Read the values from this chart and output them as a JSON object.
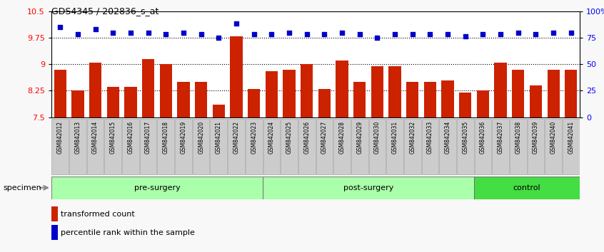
{
  "title": "GDS4345 / 202836_s_at",
  "samples": [
    "GSM842012",
    "GSM842013",
    "GSM842014",
    "GSM842015",
    "GSM842016",
    "GSM842017",
    "GSM842018",
    "GSM842019",
    "GSM842020",
    "GSM842021",
    "GSM842022",
    "GSM842023",
    "GSM842024",
    "GSM842025",
    "GSM842026",
    "GSM842027",
    "GSM842028",
    "GSM842029",
    "GSM842030",
    "GSM842031",
    "GSM842032",
    "GSM842033",
    "GSM842034",
    "GSM842035",
    "GSM842036",
    "GSM842037",
    "GSM842038",
    "GSM842039",
    "GSM842040",
    "GSM842041"
  ],
  "bar_values": [
    8.85,
    8.25,
    9.05,
    8.35,
    8.35,
    9.15,
    9.0,
    8.5,
    8.5,
    7.85,
    9.8,
    8.3,
    8.8,
    8.85,
    9.0,
    8.3,
    9.1,
    8.5,
    8.95,
    8.95,
    8.5,
    8.5,
    8.55,
    8.2,
    8.25,
    9.05,
    8.85,
    8.4,
    8.85,
    8.85
  ],
  "percentile_values": [
    10.05,
    9.85,
    10.0,
    9.9,
    9.9,
    9.9,
    9.85,
    9.9,
    9.85,
    9.75,
    10.15,
    9.85,
    9.85,
    9.9,
    9.85,
    9.85,
    9.9,
    9.85,
    9.75,
    9.85,
    9.85,
    9.85,
    9.85,
    9.8,
    9.85,
    9.85,
    9.9,
    9.85,
    9.9,
    9.9
  ],
  "groups": [
    {
      "label": "pre-surgery",
      "start": 0,
      "end": 12,
      "color": "#aaffaa"
    },
    {
      "label": "post-surgery",
      "start": 12,
      "end": 24,
      "color": "#aaffaa"
    },
    {
      "label": "control",
      "start": 24,
      "end": 30,
      "color": "#44dd44"
    }
  ],
  "ylim": [
    7.5,
    10.5
  ],
  "y2lim": [
    0,
    100
  ],
  "yticks_left": [
    7.5,
    8.25,
    9.0,
    9.75,
    10.5
  ],
  "ytick_labels_left": [
    "7.5",
    "8.25",
    "9",
    "9.75",
    "10.5"
  ],
  "yticks_right": [
    0,
    25,
    50,
    75,
    100
  ],
  "ytick_labels_right": [
    "0",
    "25",
    "50",
    "75",
    "100%"
  ],
  "grid_values": [
    8.25,
    9.0,
    9.75
  ],
  "bar_color": "#CC2200",
  "dot_color": "#0000CC",
  "bar_width": 0.7,
  "tick_bg_color": "#cccccc",
  "plot_bg": "#ffffff"
}
